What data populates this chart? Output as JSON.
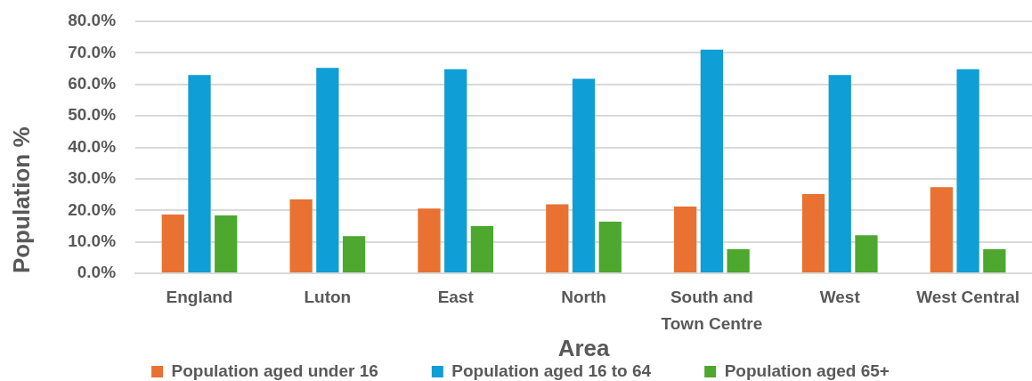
{
  "chart_data": {
    "type": "bar",
    "xlabel": "Area",
    "ylabel": "Population %",
    "categories": [
      "England",
      "Luton",
      "East",
      "North",
      "South and Town Centre",
      "West",
      "West Central"
    ],
    "series": [
      {
        "name": "Population aged under 16",
        "color": "#e97132",
        "values": [
          18.7,
          23.5,
          20.6,
          21.9,
          21.2,
          25.2,
          27.4
        ]
      },
      {
        "name": "Population aged 16 to 64",
        "color": "#0f9ed5",
        "values": [
          63.0,
          65.2,
          64.8,
          61.8,
          71.0,
          63.0,
          64.8
        ]
      },
      {
        "name": "Population aged 65+",
        "color": "#4ea72e",
        "values": [
          18.4,
          11.8,
          15.0,
          16.4,
          7.7,
          12.1,
          7.7
        ]
      }
    ],
    "ylim": [
      0,
      80
    ],
    "yticks": [
      {
        "value": 0,
        "label": "0.0%"
      },
      {
        "value": 10,
        "label": "10.0%"
      },
      {
        "value": 20,
        "label": "20.0%"
      },
      {
        "value": 30,
        "label": "30.0%"
      },
      {
        "value": 40,
        "label": "40.0%"
      },
      {
        "value": 50,
        "label": "50.0%"
      },
      {
        "value": 60,
        "label": "60.0%"
      },
      {
        "value": 70,
        "label": "70.0%"
      },
      {
        "value": 80,
        "label": "80.0%"
      }
    ],
    "grid": "y",
    "legend": "bottom"
  }
}
